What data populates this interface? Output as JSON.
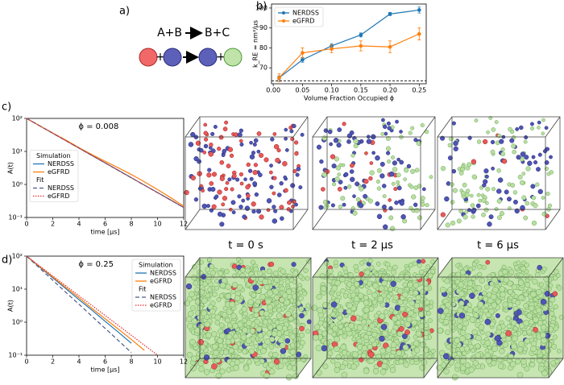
{
  "panel_labels": [
    "a)",
    "b)",
    "c)",
    "d)"
  ],
  "reaction": {
    "left": "A+B",
    "right": "B+C",
    "plus": "+"
  },
  "time_labels": [
    "t = 0 s",
    "t = 2 μs",
    "t = 6 μs"
  ],
  "chart_data": [
    {
      "type": "errorbar",
      "xlabel": "Volume Fraction Occupied ϕ",
      "ylabel": "k_RE = nm³/μs",
      "xlim": [
        -0.003,
        0.262
      ],
      "xticks": [
        {
          "value": 0,
          "label": "0.00"
        },
        {
          "value": 0.05,
          "label": "0.05"
        },
        {
          "value": 0.1,
          "label": "0.10"
        },
        {
          "value": 0.15,
          "label": "0.15"
        },
        {
          "value": 0.2,
          "label": "0.20"
        },
        {
          "value": 0.25,
          "label": "0.25"
        }
      ],
      "ylim": [
        62,
        102
      ],
      "yticks": [
        70,
        80,
        90,
        100
      ],
      "reference_line": 63.5,
      "legend": "upper left",
      "series": [
        {
          "name": "NERDSS",
          "color": "#1f77b4",
          "x": [
            0.01,
            0.05,
            0.1,
            0.15,
            0.2,
            0.25
          ],
          "values": [
            65,
            74,
            81,
            86.5,
            97,
            99
          ],
          "errors": [
            1,
            1.2,
            1,
            1,
            0.8,
            1.5
          ]
        },
        {
          "name": "eGFRD",
          "color": "#ff7f0e",
          "x": [
            0.01,
            0.05,
            0.1,
            0.15,
            0.2,
            0.25
          ],
          "values": [
            65,
            77.5,
            79.5,
            81,
            80.5,
            87
          ],
          "errors": [
            2,
            2.5,
            2,
            2.5,
            3,
            3
          ]
        }
      ]
    },
    {
      "type": "line",
      "annotation": "ϕ = 0.008",
      "xlabel": "time [μs]",
      "ylabel": "A(t)",
      "log_y": true,
      "xlim": [
        0,
        12
      ],
      "xticks": [
        0,
        2,
        4,
        6,
        8,
        10,
        12
      ],
      "ylim": [
        0.1,
        100
      ],
      "yticks": [
        {
          "value": 0.1,
          "label": "10⁻¹"
        },
        {
          "value": 1,
          "label": "10⁰"
        },
        {
          "value": 10,
          "label": "10¹"
        },
        {
          "value": 100,
          "label": "10²"
        }
      ],
      "legend": "center left",
      "legend_titles": [
        "Simulation",
        "Fit"
      ],
      "series": [
        {
          "name": "NERDSS",
          "color": "#1f77b4",
          "style": "solid",
          "x": [
            0,
            1,
            2,
            3,
            4,
            5,
            6,
            7,
            8,
            9,
            10,
            11,
            12
          ],
          "values": [
            100,
            59.6,
            35.5,
            21.2,
            12.6,
            7.5,
            4.5,
            2.7,
            1.6,
            0.95,
            0.57,
            0.34,
            0.2
          ]
        },
        {
          "name": "eGFRD",
          "color": "#ff7f0e",
          "style": "solid",
          "x": [
            0,
            1,
            2,
            3,
            4,
            5,
            6,
            7,
            8,
            9,
            10,
            11,
            12
          ],
          "values": [
            100,
            60,
            36,
            22,
            13,
            8,
            5,
            3.2,
            2,
            1.2,
            0.7,
            0.4,
            0.22
          ]
        },
        {
          "name": "NERDSS",
          "color": "#4a5a8a",
          "style": "dashed",
          "x": [
            0,
            12
          ],
          "values": [
            100,
            0.2
          ]
        },
        {
          "name": "eGFRD",
          "color": "#e03030",
          "style": "dotted",
          "x": [
            0,
            12
          ],
          "values": [
            100,
            0.2
          ]
        }
      ]
    },
    {
      "type": "line",
      "annotation": "ϕ = 0.25",
      "xlabel": "time [μs]",
      "ylabel": "A(t)",
      "log_y": true,
      "xlim": [
        0,
        12
      ],
      "xticks": [
        0,
        2,
        4,
        6,
        8,
        10,
        12
      ],
      "ylim": [
        0.1,
        100
      ],
      "yticks": [
        {
          "value": 0.1,
          "label": "10⁻¹"
        },
        {
          "value": 1,
          "label": "10⁰"
        },
        {
          "value": 10,
          "label": "10¹"
        },
        {
          "value": 100,
          "label": "10²"
        }
      ],
      "legend": "upper right",
      "legend_titles": [
        "Simulation",
        "Fit"
      ],
      "series": [
        {
          "name": "NERDSS",
          "color": "#1f77b4",
          "style": "solid",
          "x": [
            0,
            1,
            2,
            3,
            4,
            5,
            6,
            7,
            8
          ],
          "values": [
            100,
            46.9,
            22,
            10.3,
            4.8,
            2.3,
            1.06,
            0.5,
            0.23
          ]
        },
        {
          "name": "eGFRD",
          "color": "#ff7f0e",
          "style": "solid",
          "x": [
            0,
            1,
            2,
            3,
            4,
            5,
            6,
            7,
            8,
            9
          ],
          "values": [
            100,
            48.3,
            23.4,
            11.3,
            5.5,
            2.6,
            1.27,
            0.62,
            0.3,
            0.14
          ]
        },
        {
          "name": "NERDSS",
          "color": "#4a5a8a",
          "style": "dashed",
          "x": [
            0,
            1,
            2,
            3,
            4,
            5,
            6,
            7,
            8
          ],
          "values": [
            100,
            43.2,
            18.6,
            8,
            3.5,
            1.5,
            0.65,
            0.28,
            0.12
          ]
        },
        {
          "name": "eGFRD",
          "color": "#e03030",
          "style": "dotted",
          "x": [
            0,
            1,
            2,
            3,
            4,
            5,
            6,
            7,
            8,
            9,
            10
          ],
          "values": [
            100,
            50,
            25,
            12.6,
            6.3,
            3.2,
            1.6,
            0.8,
            0.4,
            0.2,
            0.1
          ]
        }
      ]
    }
  ]
}
